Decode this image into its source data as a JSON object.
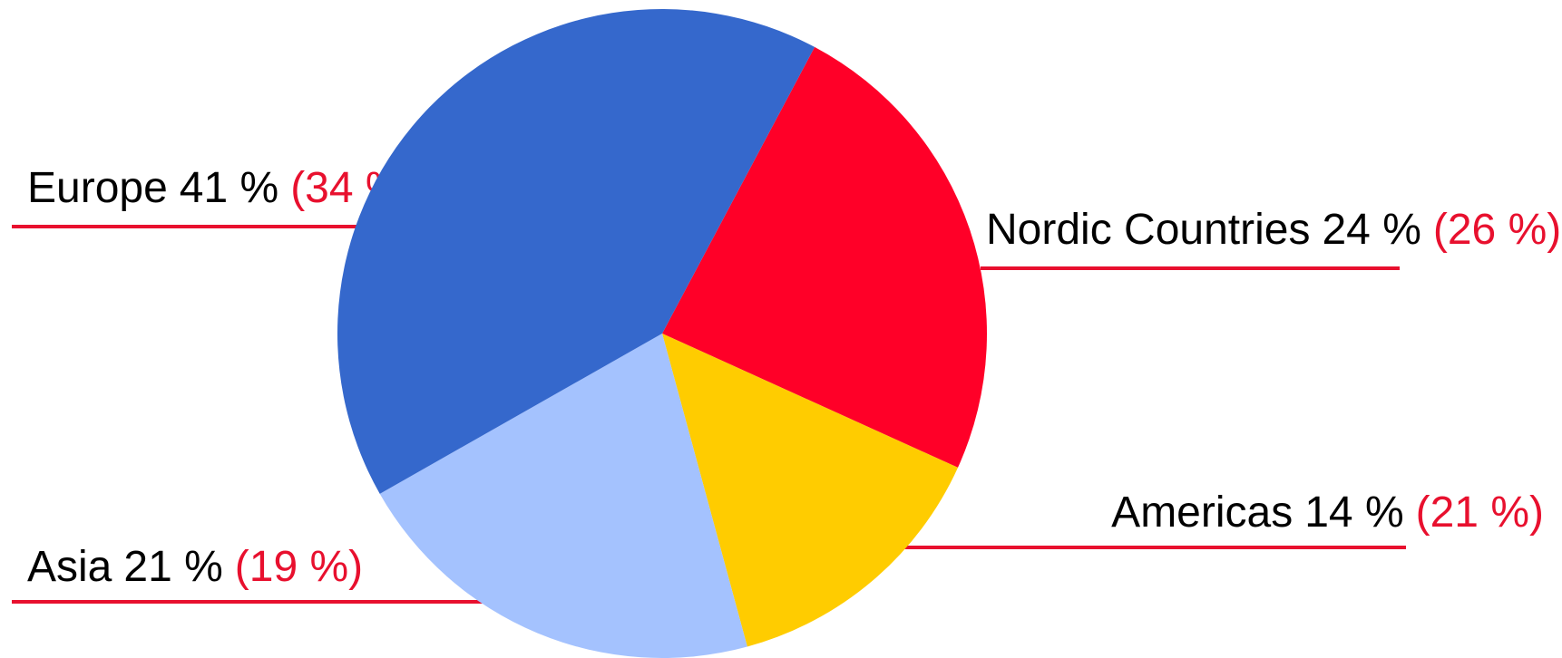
{
  "chart_data": {
    "type": "pie",
    "categories": [
      "Nordic Countries",
      "Americas",
      "Asia",
      "Europe"
    ],
    "values": [
      24,
      14,
      21,
      41
    ],
    "value_labels": [
      "24 %",
      "14 %",
      "21 %",
      "41 %"
    ],
    "previous_values": [
      26,
      21,
      19,
      34
    ],
    "previous_labels": [
      "(26 %)",
      "(21 %)",
      "(19 %)",
      "(34 %)"
    ],
    "colors": [
      "#ff0028",
      "#ffcc00",
      "#a4c2fe",
      "#3568cc"
    ]
  }
}
